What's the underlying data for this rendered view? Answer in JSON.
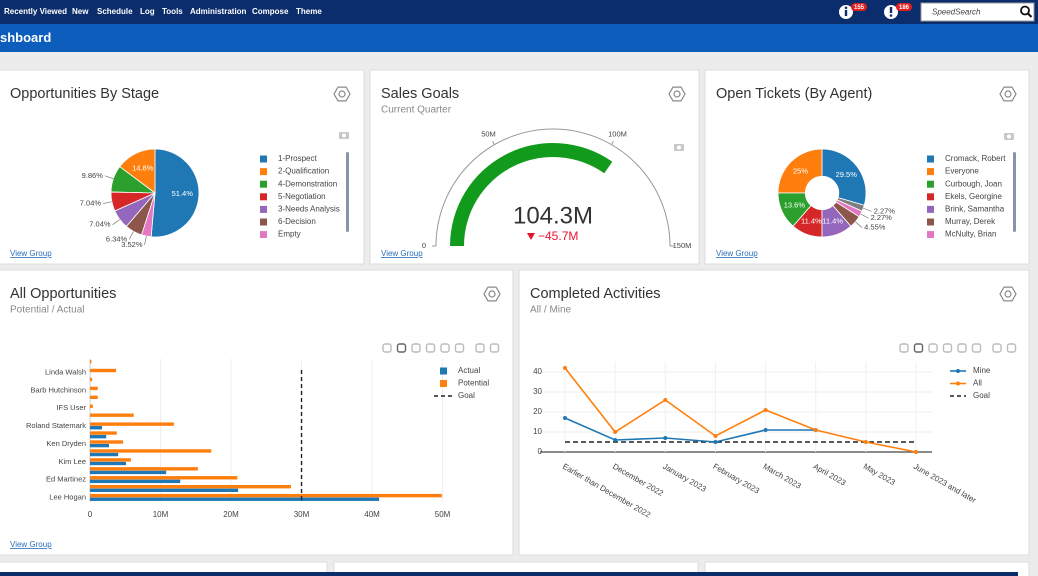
{
  "nav": {
    "items": [
      "Recently Viewed",
      "New",
      "Schedule",
      "Log",
      "Tools",
      "Administration",
      "Compose",
      "Theme"
    ],
    "badges": [
      "155",
      "186"
    ],
    "search_placeholder": "SpeedSearch"
  },
  "page_title": "shboard",
  "widgets": [
    {
      "title": "Opportunities By Stage",
      "link": "View Group",
      "chart_data": {
        "type": "pie",
        "donut": false,
        "categories": [
          "1-Prospect",
          "2-Qualification",
          "4-Demonstration",
          "5-Negotiation",
          "3-Needs Analysis",
          "6-Decision",
          "Empty"
        ],
        "values": [
          51.4,
          14.8,
          9.86,
          7.04,
          7.04,
          6.34,
          3.52
        ],
        "value_labels": [
          "51.4%",
          "14.8%",
          "9.86%",
          "7.04%",
          "7.04%",
          "6.34%",
          "3.52%"
        ],
        "colors": [
          "#1f77b4",
          "#ff7f0e",
          "#2ca02c",
          "#d62728",
          "#9467bd",
          "#8c564b",
          "#e377c2"
        ]
      }
    },
    {
      "title": "Sales Goals",
      "subtitle": "Current Quarter",
      "link": "View Group",
      "chart_data": {
        "type": "gauge",
        "range": [
          0,
          150
        ],
        "ticks": [
          0,
          {
            "value": 50,
            "label": "50M"
          },
          {
            "value": 100,
            "label": "100M"
          },
          {
            "value": 150,
            "label": "150M"
          }
        ],
        "value": {
          "value": 104.3,
          "label": "104.3M"
        },
        "delta": {
          "value": -45.7,
          "label": "−45.7M"
        },
        "color": "#119a1c",
        "delta_color": "#e8112d"
      }
    },
    {
      "title": "Open Tickets (By Agent)",
      "link": "View Group",
      "chart_data": {
        "type": "pie",
        "donut": true,
        "categories": [
          "Cromack, Robert",
          "Everyone",
          "Curbough, Joan",
          "Ekels, Georgine",
          "Brink, Samantha",
          "Murray, Derek",
          "McNulty, Brian",
          null
        ],
        "values": [
          29.5,
          25,
          13.6,
          11.4,
          11.4,
          4.55,
          2.27,
          2.27
        ],
        "value_labels": [
          "29.5%",
          "25%",
          "13.6%",
          "11.4%",
          "11.4%",
          "4.55%",
          "2.27%",
          "2.27%"
        ],
        "colors": [
          "#1f77b4",
          "#ff7f0e",
          "#2ca02c",
          "#d62728",
          "#9467bd",
          "#8c564b",
          "#e377c2",
          "#7f7f7f"
        ]
      }
    },
    {
      "title": "All Opportunities",
      "subtitle": "Potential / Actual",
      "link": "View Group",
      "chart_data": {
        "type": "hbar",
        "categories": [
          "Lee Hogan",
          null,
          "Ed Martinez",
          null,
          "Kim Lee",
          null,
          "Ken Dryden",
          null,
          "Roland Statemark",
          null,
          "IFS User",
          null,
          "Barb Hutchinson",
          null,
          "Linda Walsh",
          null
        ],
        "series": [
          {
            "name": "Actual",
            "color": "#1f77b4",
            "values": [
              41.0,
              21.0,
              12.8,
              10.8,
              5.1,
              4.0,
              2.7,
              2.3,
              1.7,
              0,
              0,
              0,
              0,
              0,
              0,
              0
            ]
          },
          {
            "name": "Potential",
            "color": "#ff7f0e",
            "values": [
              49.9,
              28.5,
              20.9,
              15.3,
              5.8,
              17.2,
              4.7,
              3.8,
              11.9,
              6.2,
              0.4,
              1.1,
              1.1,
              0.3,
              3.7,
              0.2
            ]
          }
        ],
        "goal": {
          "name": "Goal",
          "value": 30
        },
        "xlim": [
          0,
          51
        ],
        "xticks": [
          0,
          {
            "value": 10,
            "label": "10M"
          },
          {
            "value": 20,
            "label": "20M"
          },
          {
            "value": 30,
            "label": "30M"
          },
          {
            "value": 40,
            "label": "40M"
          },
          {
            "value": 50,
            "label": "50M"
          }
        ],
        "grid": true
      }
    },
    {
      "title": "Completed Activities",
      "subtitle": "All / Mine",
      "chart_data": {
        "type": "line",
        "categories": [
          "Earlier than December 2022",
          "December 2022",
          "January 2023",
          "February 2023",
          "March 2023",
          "April 2023",
          "May 2023",
          "June 2023 and later"
        ],
        "series": [
          {
            "name": "Mine",
            "color": "#1f77b4",
            "values": [
              17,
              6,
              7,
              5,
              11,
              11,
              null,
              null
            ]
          },
          {
            "name": "All",
            "color": "#ff7f0e",
            "values": [
              42,
              10,
              26,
              8,
              21,
              11,
              5,
              0
            ]
          }
        ],
        "goal": {
          "name": "Goal",
          "value": 5
        },
        "ylim": [
          -3,
          45
        ],
        "yticks": [
          0,
          10,
          20,
          30,
          40
        ],
        "grid": true
      }
    }
  ]
}
